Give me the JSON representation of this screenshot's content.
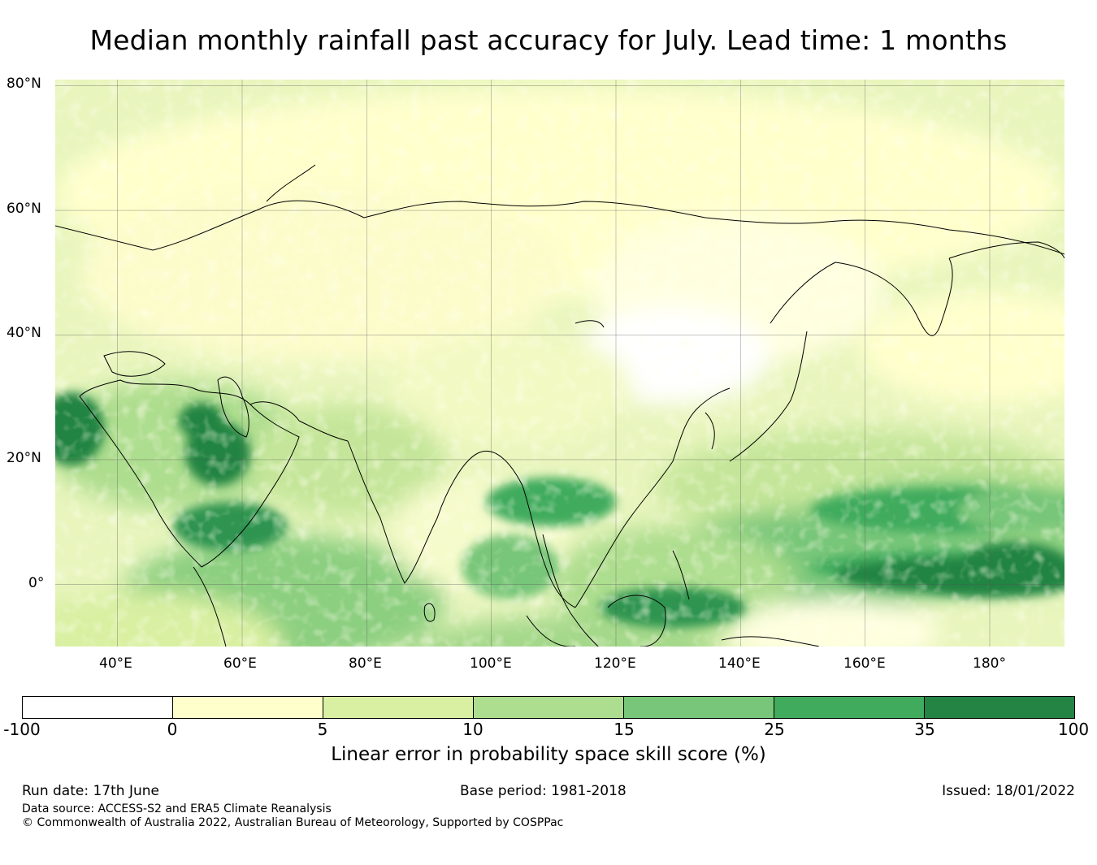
{
  "title": "Median monthly rainfall past accuracy for July. Lead time: 1 months",
  "map": {
    "lon_range": [
      30,
      192
    ],
    "lat_range": [
      -10,
      81
    ],
    "lat_ticks": [
      {
        "value": 80,
        "label": "80°N"
      },
      {
        "value": 60,
        "label": "60°N"
      },
      {
        "value": 40,
        "label": "40°N"
      },
      {
        "value": 20,
        "label": "20°N"
      },
      {
        "value": 0,
        "label": "0°"
      }
    ],
    "lon_ticks": [
      {
        "value": 40,
        "label": "40°E"
      },
      {
        "value": 60,
        "label": "60°E"
      },
      {
        "value": 80,
        "label": "80°E"
      },
      {
        "value": 100,
        "label": "100°E"
      },
      {
        "value": 120,
        "label": "120°E"
      },
      {
        "value": 140,
        "label": "140°E"
      },
      {
        "value": 160,
        "label": "160°E"
      },
      {
        "value": 180,
        "label": "180°"
      }
    ]
  },
  "colorbar": {
    "bounds": [
      "-100",
      "0",
      "5",
      "10",
      "15",
      "25",
      "35",
      "100"
    ],
    "colors": [
      "#ffffff",
      "#ffffcc",
      "#d9f0a3",
      "#addd8e",
      "#78c679",
      "#41ab5d",
      "#238443"
    ],
    "label": "Linear error in probability space skill score (%)"
  },
  "footer": {
    "run_date": "Run date: 17th June",
    "base_period": "Base period: 1981-2018",
    "issued": "Issued: 18/01/2022",
    "data_source": "Data source: ACCESS-S2 and ERA5 Climate Reanalysis",
    "copyright": "© Commonwealth of Australia 2022, Australian Bureau of Meteorology, Supported by COSPPac"
  }
}
